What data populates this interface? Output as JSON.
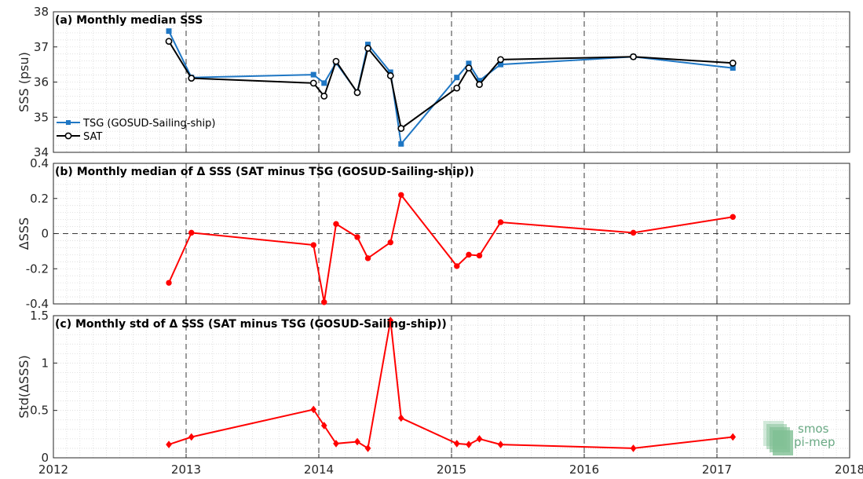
{
  "chart_data": [
    {
      "type": "line",
      "title": "(a) Monthly median SSS",
      "ylabel": "SSS (psu)",
      "ylim": [
        34,
        38
      ],
      "yticks": [
        "34",
        "35",
        "36",
        "37",
        "38"
      ],
      "xlim": [
        2012,
        2018
      ],
      "grid": true,
      "legend": "left",
      "series": [
        {
          "name": "TSG (GOSUD-Sailing-ship)",
          "color": "#1f77c4",
          "marker": "square",
          "x": [
            2012.87,
            2013.04,
            2013.96,
            2014.04,
            2014.13,
            2014.29,
            2014.37,
            2014.54,
            2014.62,
            2015.04,
            2015.13,
            2015.21,
            2015.37,
            2016.37,
            2017.12
          ],
          "y": [
            37.45,
            36.13,
            36.21,
            35.97,
            36.55,
            35.71,
            37.07,
            36.28,
            34.24,
            36.13,
            36.53,
            36.04,
            36.5,
            36.72,
            36.4
          ]
        },
        {
          "name": "SAT",
          "color": "#000000",
          "marker": "circle",
          "x": [
            2012.87,
            2013.04,
            2013.96,
            2014.04,
            2014.13,
            2014.29,
            2014.37,
            2014.54,
            2014.62,
            2015.04,
            2015.13,
            2015.21,
            2015.37,
            2016.37,
            2017.12
          ],
          "y": [
            37.16,
            36.11,
            35.97,
            35.6,
            36.59,
            35.7,
            36.96,
            36.18,
            34.68,
            35.83,
            36.4,
            35.93,
            36.64,
            36.72,
            36.54
          ]
        }
      ]
    },
    {
      "type": "line",
      "title": "(b) Monthly median of Δ SSS (SAT minus TSG (GOSUD-Sailing-ship))",
      "ylabel": "ΔSSS",
      "ylim": [
        -0.4,
        0.4
      ],
      "yticks": [
        "-0.4",
        "-0.2",
        "0",
        "0.2",
        "0.4"
      ],
      "xlim": [
        2012,
        2018
      ],
      "grid": true,
      "zero_line": true,
      "series": [
        {
          "name": "",
          "color": "#ff0000",
          "marker": "circle",
          "x": [
            2012.87,
            2013.04,
            2013.96,
            2014.04,
            2014.13,
            2014.29,
            2014.37,
            2014.54,
            2014.62,
            2015.04,
            2015.13,
            2015.21,
            2015.37,
            2016.37,
            2017.12
          ],
          "y": [
            -0.28,
            0.005,
            -0.065,
            -0.39,
            0.055,
            -0.02,
            -0.14,
            -0.05,
            0.22,
            -0.185,
            -0.12,
            -0.125,
            0.065,
            0.005,
            0.095
          ]
        }
      ]
    },
    {
      "type": "line",
      "title": "(c) Monthly std of Δ SSS (SAT minus TSG (GOSUD-Sailing-ship))",
      "ylabel": "Std(ΔSSS)",
      "ylim": [
        0,
        1.5
      ],
      "yticks": [
        "0",
        "0.5",
        "1",
        "1.5"
      ],
      "xlim": [
        2012,
        2018
      ],
      "xticks": [
        "2012",
        "2013",
        "2014",
        "2015",
        "2016",
        "2017",
        "2018"
      ],
      "grid": true,
      "series": [
        {
          "name": "",
          "color": "#ff0000",
          "marker": "diamond",
          "x": [
            2012.87,
            2013.04,
            2013.96,
            2014.04,
            2014.13,
            2014.29,
            2014.37,
            2014.54,
            2014.62,
            2015.04,
            2015.13,
            2015.21,
            2015.37,
            2016.37,
            2017.12
          ],
          "y": [
            0.14,
            0.22,
            0.51,
            0.34,
            0.15,
            0.17,
            0.1,
            1.45,
            0.42,
            0.15,
            0.14,
            0.2,
            0.14,
            0.1,
            0.22
          ]
        }
      ]
    }
  ],
  "logo": {
    "line1": "smos",
    "line2": "pi-mep"
  }
}
